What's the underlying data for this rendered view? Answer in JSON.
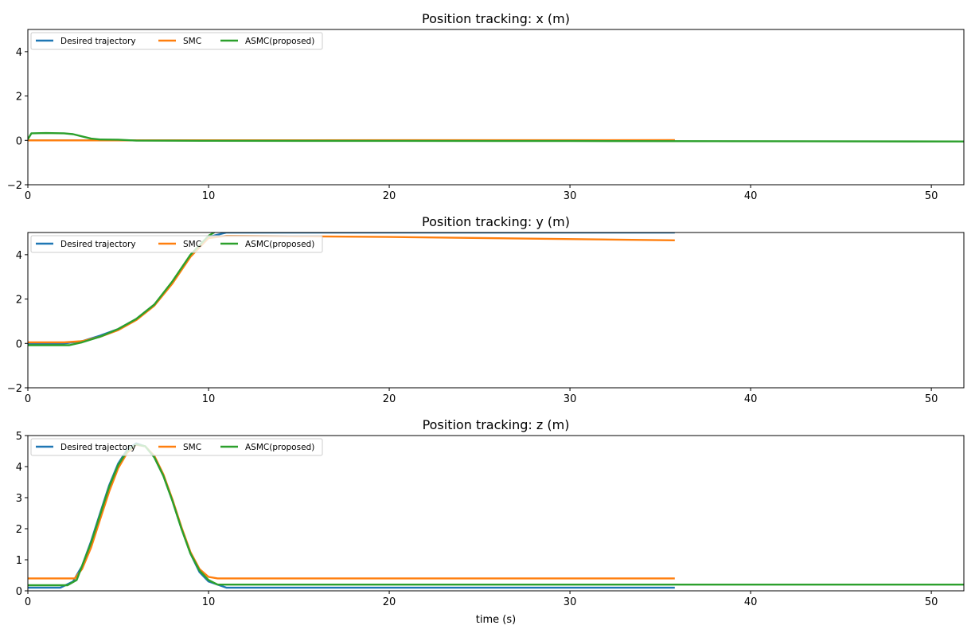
{
  "chart_data": [
    {
      "type": "line",
      "title": "Position tracking: x (m)",
      "xlabel": "",
      "ylabel": "",
      "xlim": [
        0,
        51.8
      ],
      "ylim": [
        -2,
        5
      ],
      "xticks": [
        "0",
        "10",
        "20",
        "30",
        "40",
        "50"
      ],
      "yticks": [
        "−2",
        "0",
        "2",
        "4"
      ],
      "xtick_values": [
        0,
        10,
        20,
        30,
        40,
        50
      ],
      "ytick_values": [
        -2,
        0,
        2,
        4
      ],
      "grid": false,
      "legend_position": "top-left",
      "series": [
        {
          "name": "Desired trajectory",
          "color": "#1f77b4",
          "points": [
            [
              0,
              0
            ],
            [
              35.8,
              0
            ]
          ]
        },
        {
          "name": "SMC",
          "color": "#ff7f0e",
          "points": [
            [
              0,
              0
            ],
            [
              35.8,
              0.01
            ]
          ]
        },
        {
          "name": "ASMC(proposed)",
          "color": "#2ca02c",
          "points": [
            [
              0,
              0.05
            ],
            [
              0.2,
              0.32
            ],
            [
              1,
              0.33
            ],
            [
              2,
              0.32
            ],
            [
              2.5,
              0.28
            ],
            [
              3,
              0.18
            ],
            [
              3.5,
              0.08
            ],
            [
              4,
              0.04
            ],
            [
              5,
              0.03
            ],
            [
              6,
              -0.01
            ],
            [
              10,
              -0.02
            ],
            [
              30,
              -0.03
            ],
            [
              51.8,
              -0.05
            ]
          ]
        }
      ]
    },
    {
      "type": "line",
      "title": "Position tracking: y (m)",
      "xlabel": "",
      "ylabel": "",
      "xlim": [
        0,
        51.8
      ],
      "ylim": [
        -2,
        5
      ],
      "xticks": [
        "0",
        "10",
        "20",
        "30",
        "40",
        "50"
      ],
      "yticks": [
        "−2",
        "0",
        "2",
        "4"
      ],
      "xtick_values": [
        0,
        10,
        20,
        30,
        40,
        50
      ],
      "ytick_values": [
        -2,
        0,
        2,
        4
      ],
      "grid": false,
      "legend_position": "top-left",
      "series": [
        {
          "name": "Desired trajectory",
          "color": "#1f77b4",
          "points": [
            [
              0,
              0
            ],
            [
              2,
              0
            ],
            [
              3,
              0.1
            ],
            [
              4,
              0.35
            ],
            [
              5,
              0.65
            ],
            [
              6,
              1.1
            ],
            [
              7,
              1.75
            ],
            [
              8,
              2.75
            ],
            [
              9,
              3.95
            ],
            [
              10,
              4.8
            ],
            [
              11,
              5.0
            ],
            [
              35.8,
              5.0
            ]
          ]
        },
        {
          "name": "SMC",
          "color": "#ff7f0e",
          "points": [
            [
              0,
              0.05
            ],
            [
              2,
              0.05
            ],
            [
              3,
              0.1
            ],
            [
              4,
              0.3
            ],
            [
              5,
              0.6
            ],
            [
              6,
              1.05
            ],
            [
              7,
              1.7
            ],
            [
              8,
              2.7
            ],
            [
              9,
              3.9
            ],
            [
              10,
              4.75
            ],
            [
              11,
              4.85
            ],
            [
              20,
              4.8
            ],
            [
              35.8,
              4.65
            ]
          ]
        },
        {
          "name": "ASMC(proposed)",
          "color": "#2ca02c",
          "points": [
            [
              0,
              -0.08
            ],
            [
              2.3,
              -0.08
            ],
            [
              3,
              0.05
            ],
            [
              4,
              0.3
            ],
            [
              5,
              0.65
            ],
            [
              6,
              1.1
            ],
            [
              7,
              1.75
            ],
            [
              8,
              2.8
            ],
            [
              9,
              4.0
            ],
            [
              10,
              4.85
            ],
            [
              10.5,
              5.1
            ]
          ]
        }
      ]
    },
    {
      "type": "line",
      "title": "Position tracking: z (m)",
      "xlabel": "time (s)",
      "ylabel": "",
      "xlim": [
        0,
        51.8
      ],
      "ylim": [
        0,
        5
      ],
      "xticks": [
        "0",
        "10",
        "20",
        "30",
        "40",
        "50"
      ],
      "yticks": [
        "0",
        "1",
        "2",
        "3",
        "4",
        "5"
      ],
      "xtick_values": [
        0,
        10,
        20,
        30,
        40,
        50
      ],
      "ytick_values": [
        0,
        1,
        2,
        3,
        4,
        5
      ],
      "grid": false,
      "legend_position": "top-left",
      "series": [
        {
          "name": "Desired trajectory",
          "color": "#1f77b4",
          "points": [
            [
              0,
              0.1
            ],
            [
              1.8,
              0.1
            ],
            [
              2.5,
              0.3
            ],
            [
              3,
              0.8
            ],
            [
              3.5,
              1.6
            ],
            [
              4,
              2.5
            ],
            [
              4.5,
              3.4
            ],
            [
              5,
              4.1
            ],
            [
              5.5,
              4.55
            ],
            [
              6,
              4.75
            ],
            [
              6.5,
              4.65
            ],
            [
              7,
              4.3
            ],
            [
              7.5,
              3.7
            ],
            [
              8,
              2.9
            ],
            [
              8.5,
              2.0
            ],
            [
              9,
              1.2
            ],
            [
              9.5,
              0.6
            ],
            [
              10,
              0.3
            ],
            [
              11,
              0.1
            ],
            [
              35.8,
              0.1
            ]
          ]
        },
        {
          "name": "SMC",
          "color": "#ff7f0e",
          "points": [
            [
              0,
              0.4
            ],
            [
              2.6,
              0.4
            ],
            [
              3,
              0.7
            ],
            [
              3.5,
              1.4
            ],
            [
              4,
              2.3
            ],
            [
              4.5,
              3.2
            ],
            [
              5,
              3.95
            ],
            [
              5.5,
              4.45
            ],
            [
              6,
              4.7
            ],
            [
              6.5,
              4.65
            ],
            [
              7,
              4.35
            ],
            [
              7.5,
              3.75
            ],
            [
              8,
              2.95
            ],
            [
              8.5,
              2.05
            ],
            [
              9,
              1.25
            ],
            [
              9.5,
              0.7
            ],
            [
              10,
              0.45
            ],
            [
              10.5,
              0.4
            ],
            [
              35.8,
              0.4
            ]
          ]
        },
        {
          "name": "ASMC(proposed)",
          "color": "#2ca02c",
          "points": [
            [
              0,
              0.18
            ],
            [
              2.2,
              0.18
            ],
            [
              2.7,
              0.35
            ],
            [
              3,
              0.8
            ],
            [
              3.5,
              1.55
            ],
            [
              4,
              2.45
            ],
            [
              4.5,
              3.35
            ],
            [
              5,
              4.05
            ],
            [
              5.5,
              4.5
            ],
            [
              6,
              4.72
            ],
            [
              6.5,
              4.65
            ],
            [
              7,
              4.3
            ],
            [
              7.5,
              3.7
            ],
            [
              8,
              2.9
            ],
            [
              8.5,
              2.0
            ],
            [
              9,
              1.2
            ],
            [
              9.5,
              0.65
            ],
            [
              10,
              0.35
            ],
            [
              10.5,
              0.2
            ],
            [
              51.8,
              0.2
            ]
          ]
        }
      ]
    }
  ]
}
